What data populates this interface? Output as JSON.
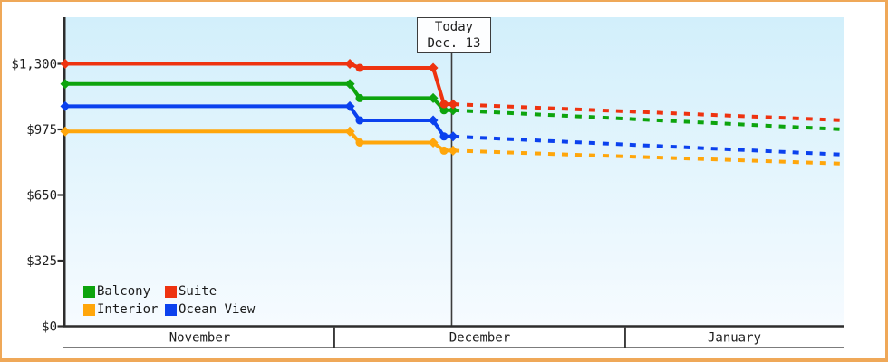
{
  "colors": {
    "frame_border": "#efa858",
    "plot_bg_top": "#d2effb",
    "plot_bg_bottom": "#f6fbff",
    "axis": "#2d2d2d",
    "text": "#1d1d1d",
    "today_line": "#3c3c3c",
    "suite": "#ee3310",
    "balcony": "#0da40d",
    "ocean_view": "#0b41ee",
    "interior": "#ffa60b"
  },
  "legend": {
    "items": [
      {
        "label": "Balcony",
        "color": "#0da40d"
      },
      {
        "label": "Suite",
        "color": "#ee3310"
      },
      {
        "label": "Interior",
        "color": "#ffa60b"
      },
      {
        "label": "Ocean View",
        "color": "#0b41ee"
      }
    ]
  },
  "chart_data": {
    "type": "line",
    "title": "",
    "xlabel": "",
    "ylabel": "",
    "grid": false,
    "legend_position": "bottom-left-inside",
    "y_axis": {
      "ticks": [
        {
          "label": "$0",
          "value": 0
        },
        {
          "label": "$325",
          "value": 325
        },
        {
          "label": "$650",
          "value": 650
        },
        {
          "label": "$975",
          "value": 975
        },
        {
          "label": "$1,300",
          "value": 1300
        }
      ],
      "ylim": [
        0,
        1540
      ]
    },
    "x_axis": {
      "months": [
        "November",
        "December",
        "January"
      ],
      "boundaries_frac": [
        0,
        0.3457,
        0.7194,
        1
      ]
    },
    "today": {
      "x_frac": 0.4965,
      "label_line1": "Today",
      "label_line2": "Dec. 13"
    },
    "series": [
      {
        "name": "Interior",
        "color": "#ffa60b",
        "points": [
          {
            "x": 0,
            "value": 965,
            "marker": "diamond"
          },
          {
            "x": 0.3656,
            "value": 965,
            "marker": "diamond"
          },
          {
            "x": 0.3783,
            "value": 910,
            "marker": "circle"
          },
          {
            "x": 0.4727,
            "value": 910,
            "marker": "diamond"
          },
          {
            "x": 0.4866,
            "value": 870,
            "marker": "circle"
          },
          {
            "x": 0.4983,
            "value": 870,
            "marker": "diamond"
          }
        ],
        "projection": {
          "end_x": 1,
          "end_value": 805
        }
      },
      {
        "name": "Ocean View",
        "color": "#0b41ee",
        "points": [
          {
            "x": 0,
            "value": 1090,
            "marker": "diamond"
          },
          {
            "x": 0.3656,
            "value": 1090,
            "marker": "diamond"
          },
          {
            "x": 0.3783,
            "value": 1020,
            "marker": "circle"
          },
          {
            "x": 0.4727,
            "value": 1020,
            "marker": "diamond"
          },
          {
            "x": 0.4866,
            "value": 940,
            "marker": "circle"
          },
          {
            "x": 0.4983,
            "value": 940,
            "marker": "diamond"
          }
        ],
        "projection": {
          "end_x": 1,
          "end_value": 850
        }
      },
      {
        "name": "Balcony",
        "color": "#0da40d",
        "points": [
          {
            "x": 0,
            "value": 1200,
            "marker": "diamond"
          },
          {
            "x": 0.3656,
            "value": 1200,
            "marker": "diamond"
          },
          {
            "x": 0.3783,
            "value": 1130,
            "marker": "circle"
          },
          {
            "x": 0.4727,
            "value": 1130,
            "marker": "diamond"
          },
          {
            "x": 0.4866,
            "value": 1070,
            "marker": "circle"
          },
          {
            "x": 0.4983,
            "value": 1070,
            "marker": "diamond"
          }
        ],
        "projection": {
          "end_x": 1,
          "end_value": 975
        }
      },
      {
        "name": "Suite",
        "color": "#ee3310",
        "points": [
          {
            "x": 0,
            "value": 1300,
            "marker": "diamond"
          },
          {
            "x": 0.3656,
            "value": 1300,
            "marker": "diamond"
          },
          {
            "x": 0.3783,
            "value": 1280,
            "marker": "circle"
          },
          {
            "x": 0.4727,
            "value": 1280,
            "marker": "diamond"
          },
          {
            "x": 0.4866,
            "value": 1100,
            "marker": "circle"
          },
          {
            "x": 0.4983,
            "value": 1100,
            "marker": "diamond"
          }
        ],
        "projection": {
          "end_x": 1,
          "end_value": 1020
        }
      }
    ]
  }
}
